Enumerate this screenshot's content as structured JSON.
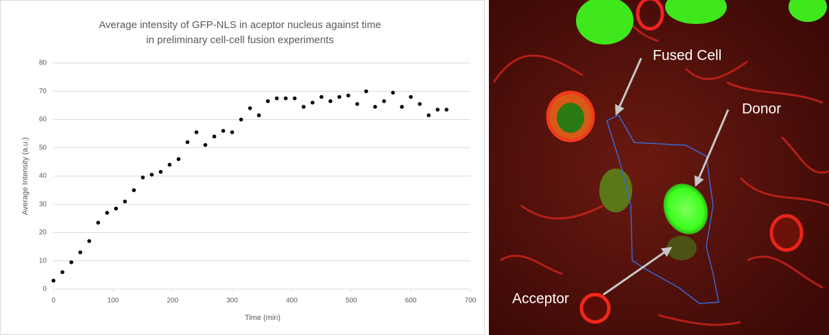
{
  "chart_data": {
    "type": "scatter",
    "title": [
      "Average intensity of GFP-NLS in aceptor nucleus against time",
      "in preliminary cell-cell fusion experiments"
    ],
    "x_label": "Time (min)",
    "y_label": "Average Intensity (a.u.)",
    "x": [
      0,
      15,
      30,
      45,
      60,
      75,
      90,
      105,
      120,
      135,
      150,
      165,
      180,
      195,
      210,
      225,
      240,
      255,
      270,
      285,
      300,
      315,
      330,
      345,
      360,
      375,
      390,
      405,
      420,
      435,
      450,
      465,
      480,
      495,
      510,
      525,
      540,
      555,
      570,
      585,
      600,
      615,
      630,
      645,
      660
    ],
    "values": [
      3,
      6,
      9.5,
      13,
      17,
      23.5,
      27,
      28.5,
      31,
      35,
      39.5,
      40.5,
      41.5,
      44,
      46,
      52,
      55.5,
      51,
      54,
      56,
      55.5,
      60,
      64,
      61.5,
      66.5,
      67.5,
      67.5,
      67.5,
      64.5,
      66,
      68,
      66.5,
      68,
      68.5,
      65.5,
      70,
      64.5,
      66.5,
      69.5,
      64.5,
      68,
      65.5,
      61.5,
      63.5,
      63.5
    ],
    "color": "#000000",
    "xlim": [
      0,
      700
    ],
    "xticks": [
      0,
      100,
      200,
      300,
      400,
      500,
      600,
      700
    ],
    "ylim": [
      0,
      80
    ],
    "yticks": [
      0,
      10,
      20,
      30,
      40,
      50,
      60,
      70,
      80
    ],
    "grid": true
  },
  "image": {
    "labels": [
      "Fused Cell",
      "Donor",
      "Acceptor"
    ]
  }
}
